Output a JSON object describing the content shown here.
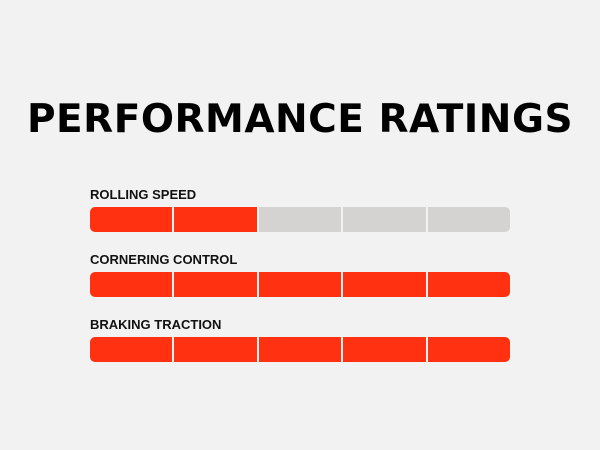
{
  "chart_data": {
    "type": "bar",
    "title": "PERFORMANCE RATINGS",
    "categories": [
      "ROLLING SPEED",
      "CORNERING CONTROL",
      "BRAKING TRACTION"
    ],
    "values": [
      2,
      5,
      5
    ],
    "max": 5,
    "segments": 5,
    "colors": {
      "filled": "#ff3111",
      "empty": "#d5d2d2",
      "background": "#f2f2f2"
    }
  }
}
